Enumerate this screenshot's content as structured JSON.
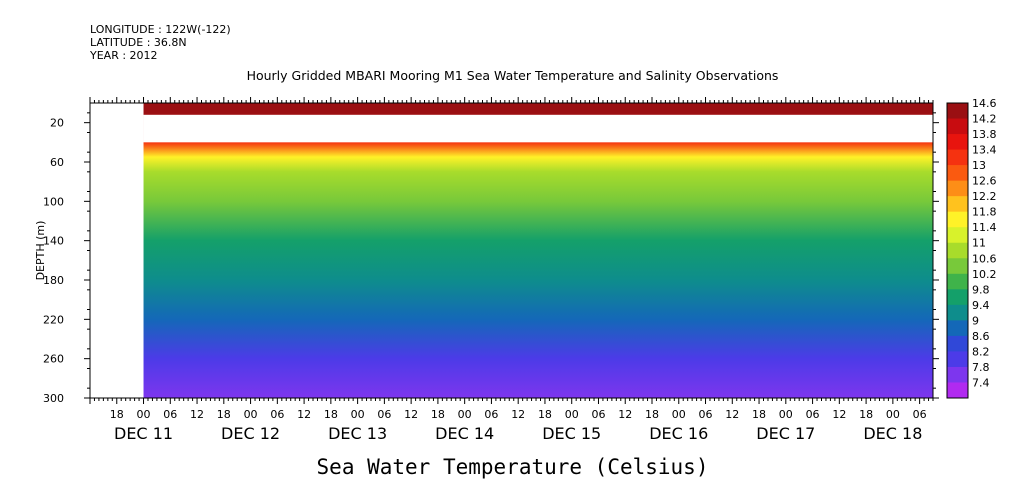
{
  "header": {
    "longitude": "LONGITUDE : 122W(-122)",
    "latitude": "LATITUDE : 36.8N",
    "year": "YEAR : 2012"
  },
  "chart_data": {
    "type": "heatmap",
    "title": "Hourly Gridded MBARI Mooring M1 Sea Water Temperature and Salinity Observations",
    "colorbar_title": "Sea Water Temperature (Celsius)",
    "ylabel": "DEPTH (m)",
    "y_reversed": true,
    "ylim": [
      300,
      0
    ],
    "y_ticks": [
      20,
      60,
      100,
      140,
      180,
      220,
      260,
      300
    ],
    "x_range_hours": [
      "2012-12-10 12:00",
      "2012-12-18 09:00"
    ],
    "x_hour_labels": [
      "18",
      "00",
      "06",
      "12",
      "18",
      "00",
      "06",
      "12",
      "18",
      "00",
      "06",
      "12",
      "18",
      "00",
      "06",
      "12",
      "18",
      "00",
      "06",
      "12",
      "18",
      "00",
      "06",
      "12",
      "18",
      "00",
      "06",
      "12",
      "18",
      "00",
      "06"
    ],
    "x_day_labels": [
      "DEC 11",
      "DEC 12",
      "DEC 13",
      "DEC 14",
      "DEC 15",
      "DEC 16",
      "DEC 17",
      "DEC 18"
    ],
    "data_start": "2012-12-11 00:00",
    "colorbar_levels": [
      "14.6",
      "14.2",
      "13.8",
      "13.4",
      "13",
      "12.6",
      "12.2",
      "11.8",
      "11.4",
      "11",
      "10.6",
      "10.2",
      "9.8",
      "9.4",
      "9",
      "8.6",
      "8.2",
      "7.8",
      "7.4"
    ],
    "colorbar_colors": [
      "#9a0f12",
      "#c80c10",
      "#e8140e",
      "#f53210",
      "#fa5a10",
      "#fd8e17",
      "#ffc21e",
      "#fff228",
      "#d8f22b",
      "#a8dc2b",
      "#78c93a",
      "#3fb34a",
      "#14a06a",
      "#0e8d8c",
      "#1468b8",
      "#3048d8",
      "#4c3be8",
      "#7d36ee",
      "#b12af0"
    ],
    "depth_profile": [
      {
        "depth": 10,
        "value": 14.4
      },
      {
        "depth": 40,
        "value": 13.6
      },
      {
        "depth": 55,
        "value": 12.0
      },
      {
        "depth": 70,
        "value": 11.0
      },
      {
        "depth": 100,
        "value": 10.4
      },
      {
        "depth": 140,
        "value": 9.8
      },
      {
        "depth": 180,
        "value": 9.3
      },
      {
        "depth": 220,
        "value": 8.8
      },
      {
        "depth": 260,
        "value": 8.3
      },
      {
        "depth": 300,
        "value": 7.8
      }
    ],
    "data_gap_depth": [
      12,
      40
    ]
  }
}
